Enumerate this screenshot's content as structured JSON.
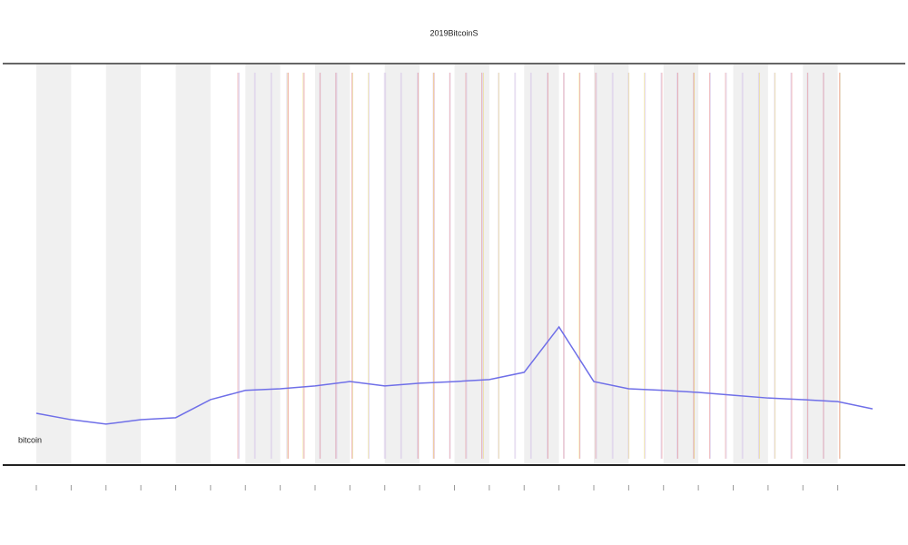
{
  "chart_data": {
    "type": "line",
    "title": "2019BitcoinS",
    "x": [
      0,
      1,
      2,
      3,
      4,
      5,
      6,
      7,
      8,
      9,
      10,
      11,
      12,
      13,
      14,
      15,
      16,
      17,
      18,
      19,
      20,
      21,
      22,
      23,
      24
    ],
    "series": [
      {
        "name": "bitcoin",
        "color": "#6f6fe8",
        "values": [
          12.9,
          11.3,
          10.2,
          11.3,
          11.8,
          16.3,
          18.6,
          19.0,
          19.7,
          20.8,
          19.7,
          20.4,
          20.8,
          21.3,
          23.1,
          34.4,
          20.8,
          19.0,
          18.6,
          18.1,
          17.4,
          16.7,
          16.3,
          15.8,
          14.0
        ]
      }
    ],
    "xlim": [
      0,
      24
    ],
    "ylim": [
      0,
      100
    ],
    "xticks": [
      0,
      1,
      2,
      3,
      4,
      5,
      6,
      7,
      8,
      9,
      10,
      11,
      12,
      13,
      14,
      15,
      16,
      17,
      18,
      19,
      20,
      21,
      22,
      23
    ],
    "shade": "#f0f0f0"
  }
}
